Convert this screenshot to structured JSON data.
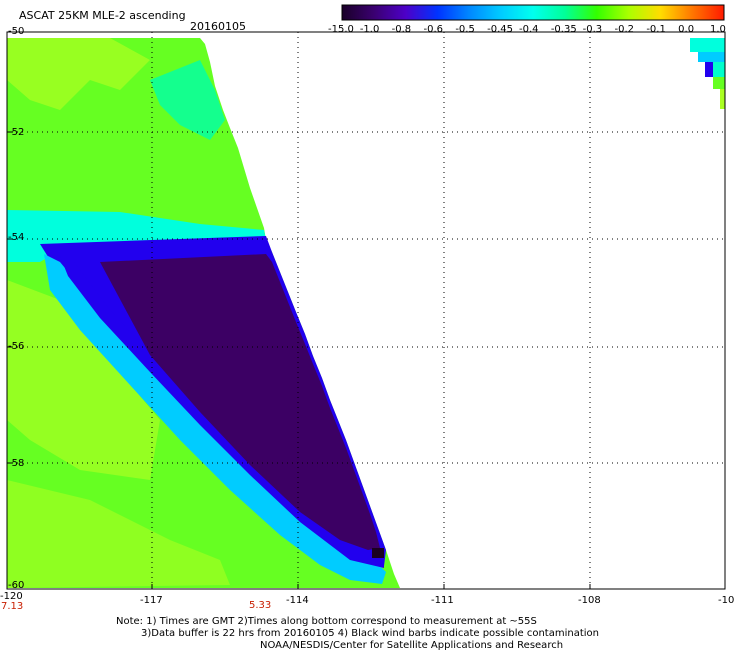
{
  "header": {
    "title": "ASCAT 25KM MLE-2 ascending",
    "date": "20160105"
  },
  "colorbar": {
    "labels": [
      "-15.0",
      "-1.0",
      "-0.8",
      "-0.6",
      "-0.5",
      "-0.45",
      "-0.4",
      "-0.35",
      "-0.3",
      "-0.2",
      "-0.1",
      "0.0",
      "1.0"
    ],
    "colors": [
      "#1a0028",
      "#3a0070",
      "#4d00c8",
      "#0033ff",
      "#0088ff",
      "#00ccff",
      "#00ffee",
      "#00ff99",
      "#33ff00",
      "#aaff00",
      "#ffdd00",
      "#ff7700",
      "#ff1a00"
    ]
  },
  "map": {
    "lat_labels": [
      "-50",
      "-52",
      "-54",
      "-56",
      "-58",
      "-60"
    ],
    "lon_labels": [
      "-120",
      "-117",
      "-114",
      "-111",
      "-108",
      "-10"
    ],
    "time_labels": [
      "7.13",
      "5.33"
    ],
    "lat_range": [
      -60,
      -50
    ],
    "lon_range": [
      -120,
      -105
    ]
  },
  "footer": {
    "note1": "Note: 1) Times are GMT 2)Times along bottom correspond to measurement at ~55S",
    "note2": "3)Data buffer is 22 hrs from 20160105 4) Black wind barbs indicate possible contamination",
    "note3": "NOAA/NESDIS/Center for Satellite Applications and Research"
  }
}
